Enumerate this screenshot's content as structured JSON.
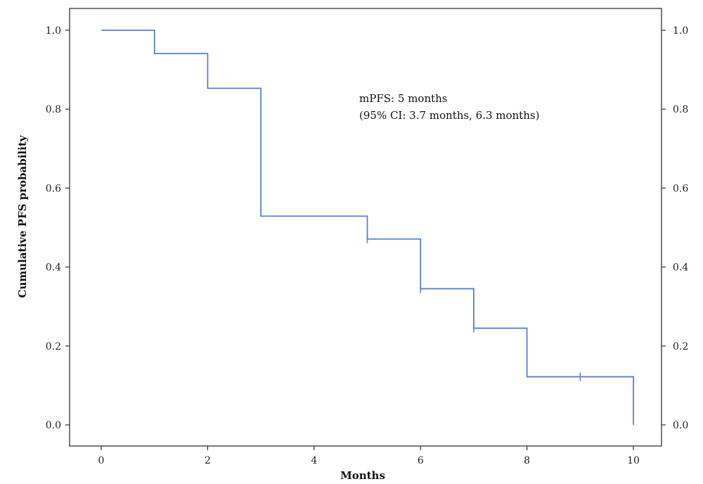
{
  "chart_data": {
    "type": "line",
    "step": true,
    "xlabel": "Months",
    "ylabel": "Cumulative PFS probability",
    "xlim": [
      0,
      10
    ],
    "ylim": [
      0.0,
      1.0
    ],
    "x_ticks": [
      0,
      2,
      4,
      6,
      8,
      10
    ],
    "y_ticks": [
      0.0,
      0.2,
      0.4,
      0.6,
      0.8,
      1.0
    ],
    "x_tick_labels": [
      "0",
      "2",
      "4",
      "6",
      "8",
      "10"
    ],
    "y_tick_labels": [
      "0.0",
      "0.2",
      "0.4",
      "0.6",
      "0.8",
      "1.0"
    ],
    "grid": false,
    "series": [
      {
        "color": "#5a7fd6",
        "x": [
          0,
          1,
          2,
          3,
          5,
          6,
          7,
          8,
          10
        ],
        "y": [
          1.0,
          0.941,
          0.853,
          0.529,
          0.471,
          0.345,
          0.245,
          0.122,
          0.0
        ],
        "censored": [
          {
            "x": 5,
            "y": 0.471
          },
          {
            "x": 6,
            "y": 0.345
          },
          {
            "x": 6,
            "y": 0.345
          },
          {
            "x": 7,
            "y": 0.245
          },
          {
            "x": 9,
            "y": 0.122
          }
        ]
      }
    ],
    "annotations": [
      "mPFS: 5 months",
      "(95% CI: 3.7 months, 6.3 months)"
    ]
  }
}
